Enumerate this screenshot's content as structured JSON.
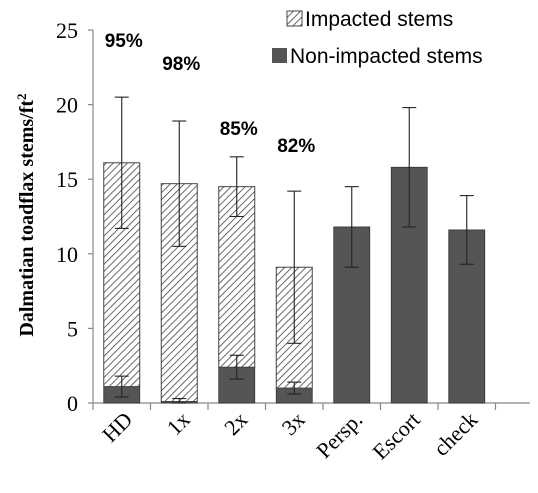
{
  "chart_data": {
    "type": "bar",
    "stacked": true,
    "ylabel": "Dalmatian toadflax stems/ft",
    "ylabel_superscript": "2",
    "ylim": [
      0,
      25
    ],
    "yticks": [
      0,
      5,
      10,
      15,
      20,
      25
    ],
    "categories": [
      "HD",
      "1x",
      "2x",
      "3x",
      "Persp.",
      "Escort",
      "check"
    ],
    "series": [
      {
        "name": "Non-impacted stems",
        "color": "#555555",
        "pattern": "solid",
        "values": [
          1.1,
          0.1,
          2.4,
          1.0,
          11.8,
          15.8,
          11.6
        ],
        "error": [
          0.7,
          0.2,
          0.8,
          0.4,
          2.7,
          4.0,
          2.3
        ]
      },
      {
        "name": "Impacted stems",
        "color": "#555555",
        "pattern": "hatched",
        "values": [
          15.0,
          14.6,
          12.1,
          8.1,
          0,
          0,
          0
        ],
        "error": [
          4.4,
          4.2,
          2.0,
          5.1,
          0,
          0,
          0
        ]
      }
    ],
    "annotations": [
      {
        "category": "HD",
        "text": "95%"
      },
      {
        "category": "1x",
        "text": "98%"
      },
      {
        "category": "2x",
        "text": "85%"
      },
      {
        "category": "3x",
        "text": "82%"
      }
    ],
    "legend": {
      "position": "top-right",
      "entries": [
        "Impacted stems",
        "Non-impacted stems"
      ]
    },
    "grid": false
  }
}
